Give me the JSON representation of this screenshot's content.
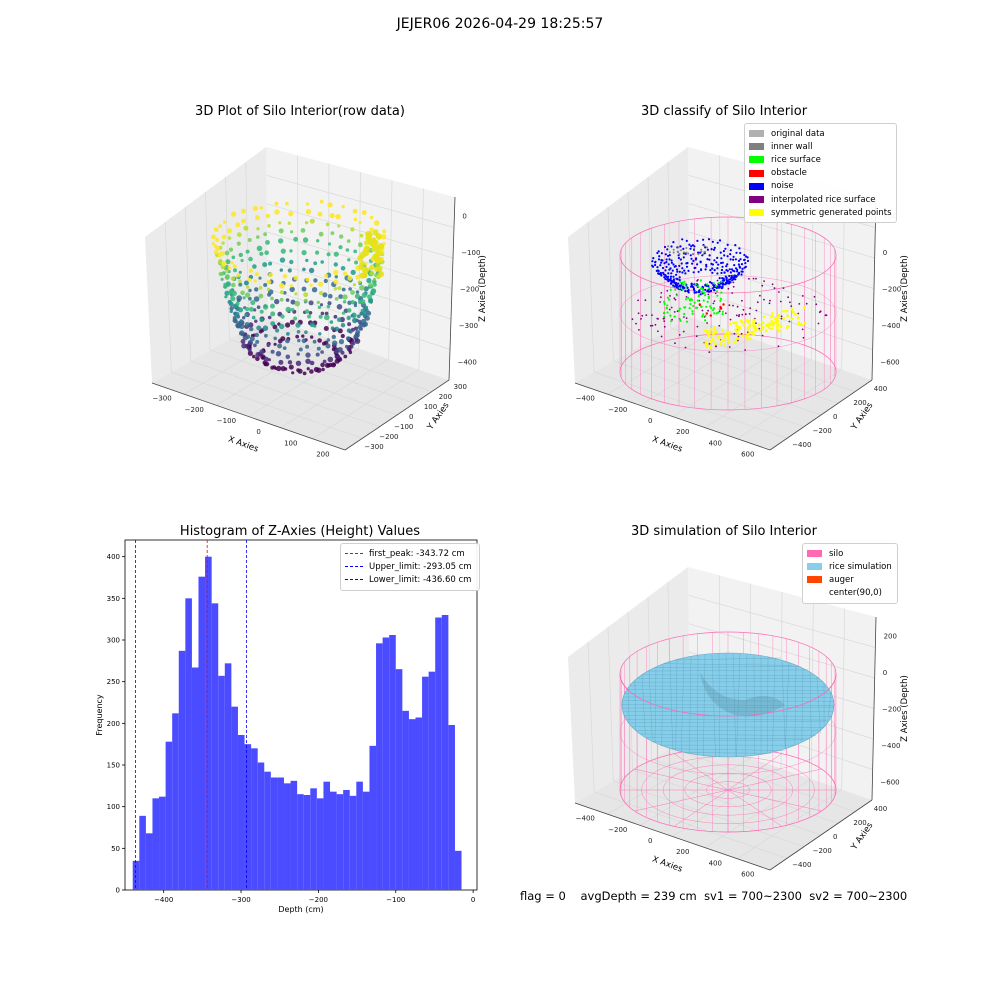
{
  "suptitle": "JEJER06 2026-04-29 18:25:57",
  "status": {
    "flag": "flag = 0",
    "avg_depth": "avgDepth = 239 cm",
    "sv1": "sv1 = 700~2300",
    "sv2": "sv2 = 700~2300"
  },
  "chart_data": [
    {
      "type": "scatter",
      "projection": "3d",
      "title": "3D Plot of Silo Interior(row data)",
      "xlabel": "X Axies",
      "ylabel": "Y Axies",
      "zlabel": "Z Axies (Depth)",
      "x_ticks": [
        "−300",
        "−200",
        "−100",
        "0",
        "100",
        "200"
      ],
      "y_ticks": [
        "−300",
        "−200",
        "−100",
        "0",
        "100",
        "200",
        "300"
      ],
      "z_ticks": [
        "0",
        "−100",
        "−200",
        "−300",
        "−400"
      ],
      "colormap": "viridis"
    },
    {
      "type": "scatter",
      "projection": "3d",
      "title": "3D classify of Silo Interior",
      "xlabel": "X Axies",
      "ylabel": "Y Axies",
      "zlabel": "Z Axies (Depth)",
      "x_ticks": [
        "−400",
        "−200",
        "0",
        "200",
        "400",
        "600"
      ],
      "y_ticks": [
        "−400",
        "−200",
        "0",
        "200",
        "400"
      ],
      "z_ticks": [
        "200",
        "0",
        "−200",
        "−400",
        "−600"
      ],
      "legend": [
        {
          "label": "original data",
          "color": "#b0b0b0"
        },
        {
          "label": "inner wall",
          "color": "#808080"
        },
        {
          "label": "rice surface",
          "color": "#00ff00"
        },
        {
          "label": "obstacle",
          "color": "#ff0000"
        },
        {
          "label": "noise",
          "color": "#0000ff"
        },
        {
          "label": "interpolated rice surface",
          "color": "#800080"
        },
        {
          "label": "symmetric generated points",
          "color": "#ffff00"
        }
      ],
      "legend_position": "top-right"
    },
    {
      "type": "bar",
      "title": "Histogram of Z-Axies (Height) Values",
      "xlabel": "Depth (cm)",
      "ylabel": "Frequency",
      "xlim": [
        -450,
        5
      ],
      "ylim": [
        0,
        420
      ],
      "x_ticks": [
        -400,
        -300,
        -200,
        -100,
        0
      ],
      "y_ticks": [
        0,
        50,
        100,
        150,
        200,
        250,
        300,
        350,
        400
      ],
      "bin_start": -440,
      "bin_width": 8.5,
      "bar_color": "#4b4bff",
      "values": [
        35,
        89,
        68,
        110,
        112,
        178,
        212,
        287,
        350,
        267,
        376,
        400,
        344,
        257,
        272,
        220,
        186,
        175,
        170,
        153,
        142,
        135,
        135,
        128,
        131,
        115,
        114,
        122,
        110,
        130,
        118,
        115,
        120,
        113,
        130,
        118,
        173,
        296,
        303,
        306,
        265,
        215,
        205,
        207,
        256,
        262,
        327,
        330,
        198,
        47
      ],
      "vlines": [
        {
          "x": -343.72,
          "label": "first_peak: -343.72 cm",
          "color": "#ff0000"
        },
        {
          "x": -293.05,
          "label": "Upper_limit: -293.05 cm",
          "color": "#0000ff"
        },
        {
          "x": -436.6,
          "label": "Lower_limit: -436.60 cm",
          "color": "#0000ff"
        }
      ],
      "legend_position": "top-right",
      "grid": false
    },
    {
      "type": "surface",
      "projection": "3d",
      "title": "3D simulation of Silo Interior",
      "xlabel": "X Axies",
      "ylabel": "Y Axies",
      "zlabel": "Z Axies (Depth)",
      "x_ticks": [
        "−400",
        "−200",
        "0",
        "200",
        "400",
        "600"
      ],
      "y_ticks": [
        "−400",
        "−200",
        "0",
        "200",
        "400"
      ],
      "z_ticks": [
        "200",
        "0",
        "−200",
        "−400",
        "−600"
      ],
      "legend": [
        {
          "label": "silo",
          "color": "#ff69b4"
        },
        {
          "label": "rice simulation",
          "color": "#87ceeb"
        },
        {
          "label": "auger",
          "color": "#ff4500"
        },
        {
          "label": "center(90,0)",
          "color": "#ffffff"
        }
      ],
      "legend_position": "top-right"
    }
  ]
}
